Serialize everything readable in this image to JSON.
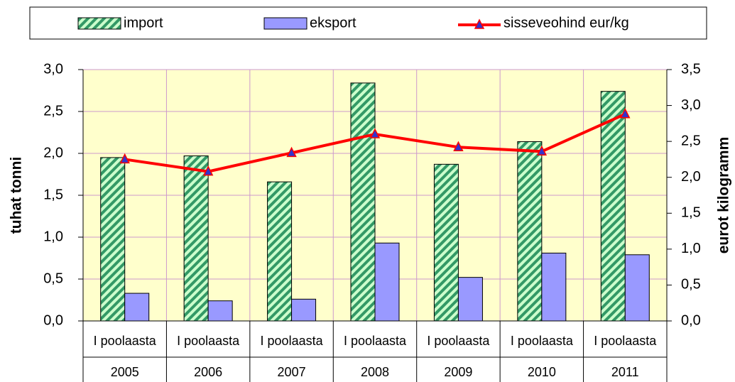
{
  "chart_data": {
    "type": "bar-line",
    "categories": [
      "2005",
      "2006",
      "2007",
      "2008",
      "2009",
      "2010",
      "2011"
    ],
    "subcategories": [
      "I poolaasta",
      "I poolaasta",
      "I poolaasta",
      "I poolaasta",
      "I poolaasta",
      "I poolaasta",
      "I poolaasta"
    ],
    "series": [
      {
        "name": "import",
        "type": "bar",
        "color": "#339966",
        "pattern": "hatch",
        "values": [
          1.95,
          1.97,
          1.66,
          2.84,
          1.87,
          2.14,
          2.74
        ]
      },
      {
        "name": "eksport",
        "type": "bar",
        "color": "#9999ff",
        "values": [
          0.33,
          0.24,
          0.26,
          0.93,
          0.52,
          0.81,
          0.79
        ]
      },
      {
        "name": "sisseveohind eur/kg",
        "type": "line",
        "axis": "y2",
        "color": "#ff0000",
        "marker_color": "#3333cc",
        "values": [
          2.25,
          2.08,
          2.34,
          2.6,
          2.42,
          2.36,
          2.88
        ]
      }
    ],
    "ylabel": "tuhat tonni",
    "y2label": "eurot kilogramm",
    "ylim": [
      0,
      3
    ],
    "yticks": [
      {
        "value": 0,
        "label": "0,0"
      },
      {
        "value": 0.5,
        "label": "0,5"
      },
      {
        "value": 1,
        "label": "1,0"
      },
      {
        "value": 1.5,
        "label": "1,5"
      },
      {
        "value": 2,
        "label": "2,0"
      },
      {
        "value": 2.5,
        "label": "2,5"
      },
      {
        "value": 3,
        "label": "3,0"
      }
    ],
    "y2lim": [
      0,
      3.5
    ],
    "y2ticks": [
      {
        "value": 0,
        "label": "0,0"
      },
      {
        "value": 0.5,
        "label": "0,5"
      },
      {
        "value": 1,
        "label": "1,0"
      },
      {
        "value": 1.5,
        "label": "1,5"
      },
      {
        "value": 2,
        "label": "2,0"
      },
      {
        "value": 2.5,
        "label": "2,5"
      },
      {
        "value": 3,
        "label": "3,0"
      },
      {
        "value": 3.5,
        "label": "3,5"
      }
    ],
    "grid": true,
    "legend": "top"
  }
}
